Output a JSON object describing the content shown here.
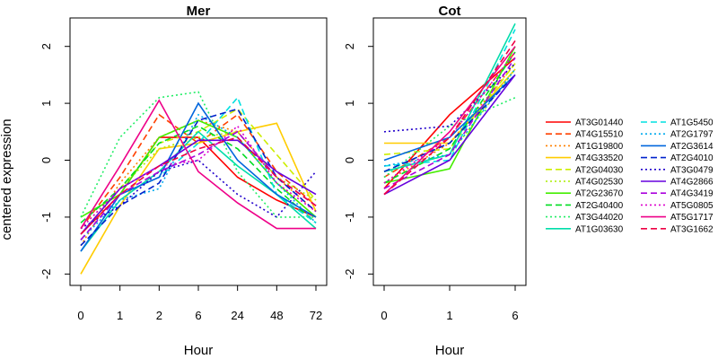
{
  "chart_data": [
    {
      "type": "line",
      "title": "Mer",
      "xlabel": "Hour",
      "ylabel": "centered expression",
      "categories": [
        "0",
        "1",
        "2",
        "6",
        "24",
        "48",
        "72"
      ],
      "yticks": [
        -2,
        -1,
        0,
        1,
        2
      ],
      "ylim": [
        -2.2,
        2.5
      ],
      "grid": false,
      "series": [
        {
          "name": "AT3G01440",
          "color": "#ff0000",
          "dash": "solid",
          "values": [
            -1.3,
            -0.6,
            0.4,
            0.4,
            -0.3,
            -0.7,
            -1.0
          ]
        },
        {
          "name": "AT4G15510",
          "color": "#ff4000",
          "dash": "dashed",
          "values": [
            -1.2,
            -0.3,
            0.8,
            0.3,
            0.8,
            -0.2,
            -0.8
          ]
        },
        {
          "name": "AT1G19800",
          "color": "#ff8000",
          "dash": "dotted",
          "values": [
            -1.5,
            -0.4,
            0.4,
            0.7,
            0.5,
            -0.3,
            -0.9
          ]
        },
        {
          "name": "AT4G33520",
          "color": "#ffcc00",
          "dash": "solid",
          "values": [
            -2.0,
            -0.8,
            0.2,
            0.3,
            0.5,
            0.65,
            -0.9
          ]
        },
        {
          "name": "AT2G04030",
          "color": "#ccee00",
          "dash": "dashed",
          "values": [
            -1.3,
            -0.5,
            0.3,
            0.5,
            0.9,
            0.1,
            -0.7
          ]
        },
        {
          "name": "AT4G02530",
          "color": "#aaee00",
          "dash": "dotted",
          "values": [
            -1.2,
            -0.5,
            0.2,
            0.4,
            0.5,
            -0.3,
            -0.7
          ]
        },
        {
          "name": "AT2G23670",
          "color": "#44ee00",
          "dash": "solid",
          "values": [
            -1.0,
            -0.6,
            0.4,
            0.7,
            0.4,
            -0.4,
            -1.0
          ]
        },
        {
          "name": "AT2G40400",
          "color": "#00dd22",
          "dash": "dashed",
          "values": [
            -1.1,
            -0.5,
            0.3,
            0.6,
            0.2,
            -0.5,
            -1.1
          ]
        },
        {
          "name": "AT3G44020",
          "color": "#22ee66",
          "dash": "dotted",
          "values": [
            -1.0,
            0.4,
            1.1,
            1.2,
            -0.2,
            -1.0,
            -1.0
          ]
        },
        {
          "name": "AT1G03630",
          "color": "#00ddaa",
          "dash": "solid",
          "values": [
            -1.6,
            -0.7,
            -0.2,
            0.5,
            -0.1,
            -0.6,
            -1.2
          ]
        },
        {
          "name": "AT1G5450",
          "color": "#00e0e0",
          "dash": "dashed",
          "values": [
            -1.4,
            -0.6,
            -0.3,
            0.3,
            1.1,
            -0.6,
            -1.1
          ]
        },
        {
          "name": "AT2G1797",
          "color": "#00aaee",
          "dash": "dotted",
          "values": [
            -1.4,
            -0.7,
            -0.5,
            0.8,
            0.4,
            -0.4,
            -1.1
          ]
        },
        {
          "name": "AT2G3614",
          "color": "#0066dd",
          "dash": "solid",
          "values": [
            -1.6,
            -0.6,
            -0.3,
            1.0,
            0.0,
            -0.6,
            -1.0
          ]
        },
        {
          "name": "AT2G4010",
          "color": "#0022cc",
          "dash": "dashed",
          "values": [
            -1.5,
            -0.8,
            -0.4,
            0.7,
            0.9,
            -0.3,
            -0.9
          ]
        },
        {
          "name": "AT3G0479",
          "color": "#2200cc",
          "dash": "dotted",
          "values": [
            -1.2,
            -0.8,
            -0.2,
            0.0,
            -0.6,
            -1.0,
            -0.2
          ]
        },
        {
          "name": "AT4G2866",
          "color": "#6600dd",
          "dash": "solid",
          "values": [
            -1.3,
            -0.5,
            -0.1,
            0.35,
            0.35,
            -0.2,
            -0.6
          ]
        },
        {
          "name": "AT4G3419",
          "color": "#aa00dd",
          "dash": "dashed",
          "values": [
            -1.4,
            -0.6,
            -0.2,
            0.1,
            0.5,
            -0.3,
            -0.8
          ]
        },
        {
          "name": "AT5G0805",
          "color": "#dd00cc",
          "dash": "dotted",
          "values": [
            -1.2,
            -0.5,
            -0.1,
            0.0,
            0.6,
            -0.4,
            -0.9
          ]
        },
        {
          "name": "AT5G1717",
          "color": "#ee0088",
          "dash": "solid",
          "values": [
            -1.2,
            -0.1,
            1.05,
            -0.2,
            -0.75,
            -1.2,
            -1.2
          ]
        },
        {
          "name": "AT3G1662",
          "color": "#ee0044",
          "dash": "dashed",
          "values": [
            -1.3,
            -0.6,
            -0.1,
            0.2,
            0.4,
            -0.3,
            -0.8
          ]
        }
      ]
    },
    {
      "type": "line",
      "title": "Cot",
      "xlabel": "Hour",
      "categories": [
        "0",
        "1",
        "6"
      ],
      "yticks": [
        -2,
        -1,
        0,
        1,
        2
      ],
      "ylim": [
        -2.2,
        2.5
      ],
      "grid": false,
      "series": [
        {
          "name": "AT3G01440",
          "color": "#ff0000",
          "dash": "solid",
          "values": [
            -0.5,
            0.8,
            1.8
          ]
        },
        {
          "name": "AT4G15510",
          "color": "#ff4000",
          "dash": "dashed",
          "values": [
            -0.3,
            0.4,
            1.9
          ]
        },
        {
          "name": "AT1G19800",
          "color": "#ff8000",
          "dash": "dotted",
          "values": [
            -0.4,
            0.3,
            1.7
          ]
        },
        {
          "name": "AT4G33520",
          "color": "#ffcc00",
          "dash": "solid",
          "values": [
            0.3,
            0.3,
            1.6
          ]
        },
        {
          "name": "AT2G04030",
          "color": "#ccee00",
          "dash": "dashed",
          "values": [
            0.1,
            0.2,
            1.7
          ]
        },
        {
          "name": "AT4G02530",
          "color": "#aaee00",
          "dash": "dotted",
          "values": [
            -0.2,
            0.1,
            1.6
          ]
        },
        {
          "name": "AT2G23670",
          "color": "#44ee00",
          "dash": "solid",
          "values": [
            -0.4,
            -0.15,
            2.0
          ]
        },
        {
          "name": "AT2G40400",
          "color": "#00dd22",
          "dash": "dashed",
          "values": [
            -0.4,
            0.2,
            1.9
          ]
        },
        {
          "name": "AT3G44020",
          "color": "#22ee66",
          "dash": "dotted",
          "values": [
            -0.3,
            0.6,
            1.1
          ]
        },
        {
          "name": "AT1G03630",
          "color": "#00ddaa",
          "dash": "solid",
          "values": [
            -0.2,
            0.1,
            2.4
          ]
        },
        {
          "name": "AT1G5450",
          "color": "#00e0e0",
          "dash": "dashed",
          "values": [
            -0.1,
            0.0,
            2.3
          ]
        },
        {
          "name": "AT2G1797",
          "color": "#00aaee",
          "dash": "dotted",
          "values": [
            -0.1,
            0.1,
            1.6
          ]
        },
        {
          "name": "AT2G3614",
          "color": "#0066dd",
          "dash": "solid",
          "values": [
            0.0,
            0.4,
            1.5
          ]
        },
        {
          "name": "AT2G4010",
          "color": "#0022cc",
          "dash": "dashed",
          "values": [
            -0.2,
            0.3,
            1.5
          ]
        },
        {
          "name": "AT3G0479",
          "color": "#2200cc",
          "dash": "dotted",
          "values": [
            0.5,
            0.6,
            1.7
          ]
        },
        {
          "name": "AT4G2866",
          "color": "#6600dd",
          "dash": "solid",
          "values": [
            -0.6,
            0.0,
            1.5
          ]
        },
        {
          "name": "AT4G3419",
          "color": "#aa00dd",
          "dash": "dashed",
          "values": [
            -0.5,
            0.1,
            1.8
          ]
        },
        {
          "name": "AT5G0805",
          "color": "#dd00cc",
          "dash": "dotted",
          "values": [
            -0.4,
            0.4,
            1.9
          ]
        },
        {
          "name": "AT5G1717",
          "color": "#ee0088",
          "dash": "solid",
          "values": [
            -0.6,
            0.5,
            2.0
          ]
        },
        {
          "name": "AT3G1662",
          "color": "#ee0044",
          "dash": "dashed",
          "values": [
            -0.6,
            0.4,
            2.1
          ]
        }
      ]
    }
  ]
}
